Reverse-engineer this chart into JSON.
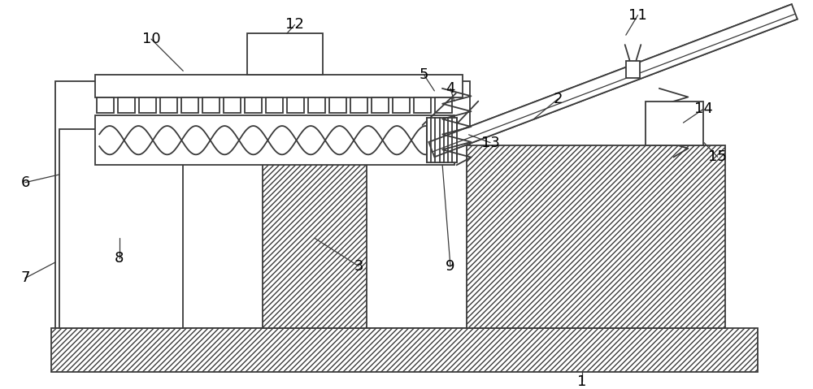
{
  "bg_color": "#ffffff",
  "line_color": "#3a3a3a",
  "fig_width": 10.0,
  "fig_height": 4.79,
  "lw": 1.3
}
